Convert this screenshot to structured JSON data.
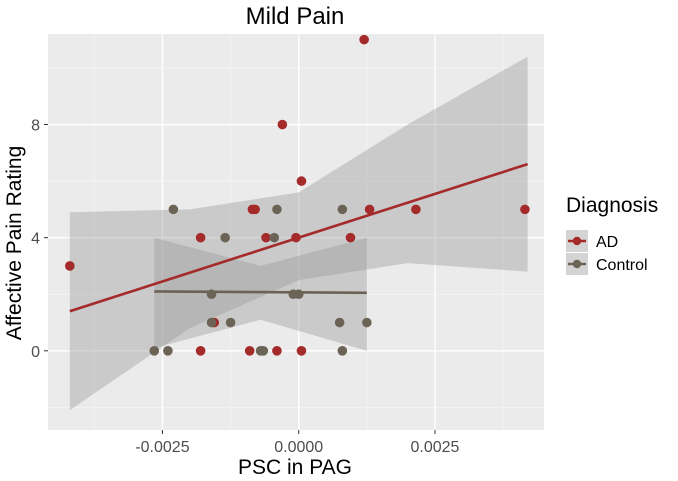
{
  "chart_data": {
    "type": "scatter",
    "title": "Mild Pain",
    "xlabel": "PSC in PAG",
    "ylabel": "Affective Pain Rating",
    "xlim": [
      -0.0046,
      0.0045
    ],
    "ylim": [
      -2.8,
      11.2
    ],
    "x_ticks": [
      -0.0025,
      0.0,
      0.0025
    ],
    "x_tick_labels": [
      "-0.0025",
      "0.0000",
      "0.0025"
    ],
    "y_ticks": [
      0,
      4,
      8
    ],
    "y_tick_labels": [
      "0",
      "4",
      "8"
    ],
    "grid": true,
    "legend": {
      "title": "Diagnosis",
      "position": "right",
      "entries": [
        {
          "label": "AD",
          "color": "#a52a2a"
        },
        {
          "label": "Control",
          "color": "#6b6355"
        }
      ]
    },
    "series": [
      {
        "name": "AD",
        "color": "#a52a2a",
        "points": [
          [
            -0.0042,
            3
          ],
          [
            -0.0018,
            4
          ],
          [
            -0.0018,
            0
          ],
          [
            -0.00155,
            1
          ],
          [
            -0.00085,
            5
          ],
          [
            -0.0009,
            0
          ],
          [
            -0.0008,
            5
          ],
          [
            -0.0006,
            4
          ],
          [
            -0.0004,
            0
          ],
          [
            -0.0003,
            8
          ],
          [
            -5e-05,
            4
          ],
          [
            5e-05,
            6
          ],
          [
            5e-05,
            0
          ],
          [
            0.00095,
            4
          ],
          [
            0.0012,
            11
          ],
          [
            0.0013,
            5
          ],
          [
            0.00215,
            5
          ],
          [
            0.00415,
            5
          ]
        ],
        "fit": {
          "x": [
            -0.0042,
            0.0042
          ],
          "y": [
            1.4,
            6.6
          ]
        },
        "ci": {
          "x": [
            -0.0042,
            -0.002,
            0.0,
            0.002,
            0.0042
          ],
          "lower": [
            -2.1,
            0.8,
            2.5,
            3.1,
            2.8
          ],
          "upper": [
            4.9,
            5.0,
            5.6,
            8.0,
            10.4
          ]
        }
      },
      {
        "name": "Control",
        "color": "#6b6355",
        "points": [
          [
            -0.00265,
            0
          ],
          [
            -0.0024,
            0
          ],
          [
            -0.0023,
            5
          ],
          [
            -0.0016,
            2
          ],
          [
            -0.0016,
            1
          ],
          [
            -0.00135,
            4
          ],
          [
            -0.00125,
            1
          ],
          [
            -0.0007,
            0
          ],
          [
            -0.00065,
            0
          ],
          [
            -0.00045,
            4
          ],
          [
            -0.0004,
            5
          ],
          [
            -0.0001,
            2
          ],
          [
            0.0,
            2
          ],
          [
            0.00075,
            1
          ],
          [
            0.0008,
            5
          ],
          [
            0.0008,
            0
          ],
          [
            0.00125,
            1
          ]
        ],
        "fit": {
          "x": [
            -0.00265,
            0.00125
          ],
          "y": [
            2.1,
            2.05
          ]
        },
        "ci": {
          "x": [
            -0.00265,
            -0.0007,
            0.00125
          ],
          "lower": [
            0.1,
            1.1,
            0.0
          ],
          "upper": [
            4.0,
            3.0,
            4.0
          ]
        }
      }
    ]
  }
}
